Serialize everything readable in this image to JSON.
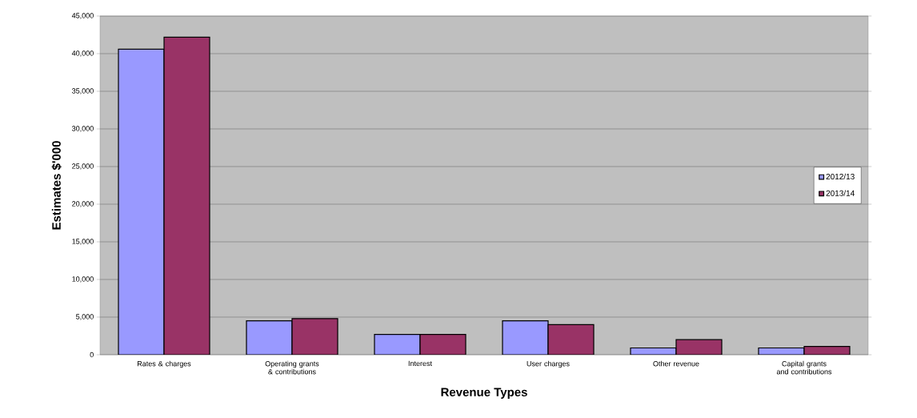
{
  "chart_data": {
    "type": "bar",
    "xlabel": "Revenue Types",
    "ylabel": "Estimates $'000",
    "categories": [
      "Rates & charges",
      "Operating grants & contributions",
      "Interest",
      "User charges",
      "Other revenue",
      "Capital grants and contributions"
    ],
    "series": [
      {
        "name": "2012/13",
        "color": "#9999ff",
        "values": [
          40600,
          4500,
          2700,
          4500,
          900,
          900
        ]
      },
      {
        "name": "2013/14",
        "color": "#993366",
        "values": [
          42200,
          4800,
          2700,
          4000,
          2000,
          1100
        ]
      }
    ],
    "ylim": [
      0,
      45000
    ],
    "yticks": [
      {
        "value": 0,
        "label": "0"
      },
      {
        "value": 5000,
        "label": "5,000"
      },
      {
        "value": 10000,
        "label": "10,000"
      },
      {
        "value": 15000,
        "label": "15,000"
      },
      {
        "value": 20000,
        "label": "20,000"
      },
      {
        "value": 25000,
        "label": "25,000"
      },
      {
        "value": 30000,
        "label": "30,000"
      },
      {
        "value": 35000,
        "label": "35,000"
      },
      {
        "value": 40000,
        "label": "40,000"
      },
      {
        "value": 45000,
        "label": "45,000"
      }
    ],
    "grid": "y",
    "legend": "right"
  }
}
